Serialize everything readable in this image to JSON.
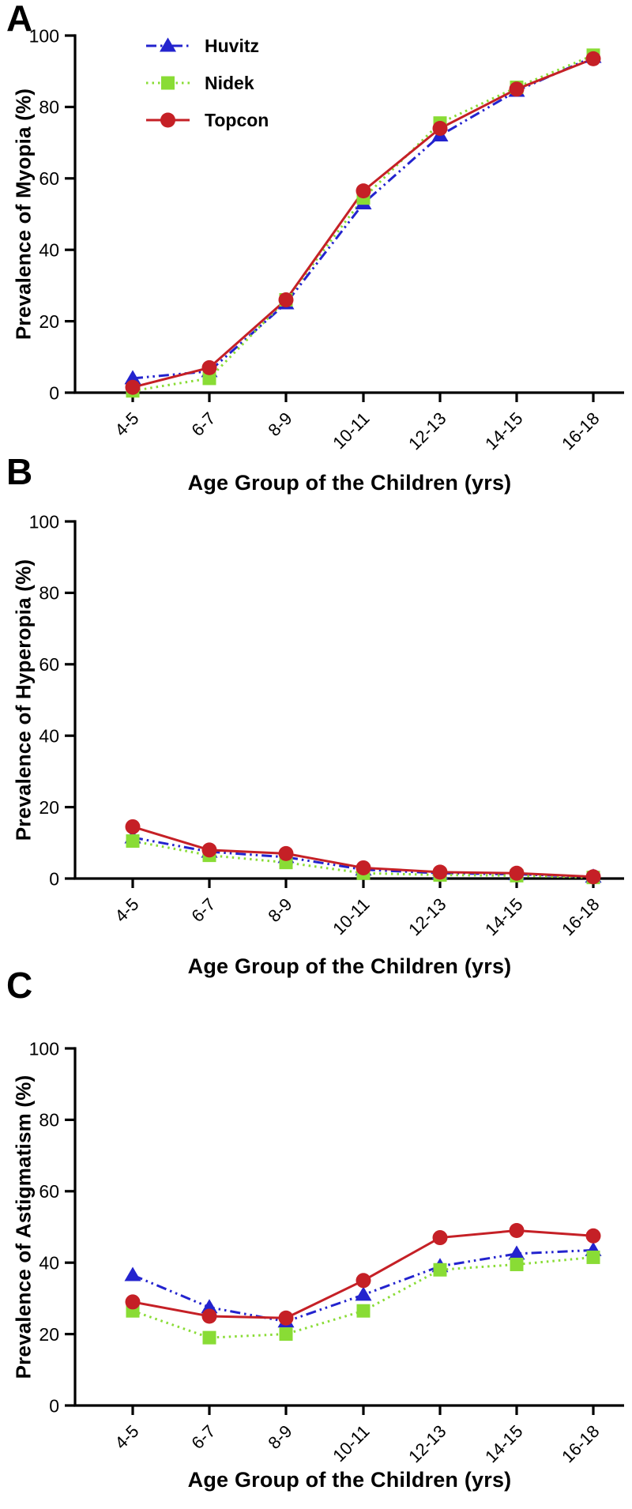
{
  "figure": {
    "y_ticks": [
      0,
      20,
      40,
      60,
      80,
      100
    ],
    "categories": [
      "4-5",
      "6-7",
      "8-9",
      "10-11",
      "12-13",
      "14-15",
      "16-18"
    ],
    "x_axis_label": "Age Group of the Children (yrs)"
  },
  "legend": {
    "items": [
      "Huvitz",
      "Nidek",
      "Topcon"
    ]
  },
  "colors": {
    "huvitz_blue": "#2323CE",
    "nidek_green": "#89DC35",
    "topcon_red": "#C52026",
    "axis_black": "#000000"
  },
  "chart_data": [
    {
      "type": "line",
      "panel": "A",
      "ylabel": "Prevalence of Myopia (%)",
      "xlabel": "Age Group of the Children (yrs)",
      "categories": [
        "4-5",
        "6-7",
        "8-9",
        "10-11",
        "12-13",
        "14-15",
        "16-18"
      ],
      "ylim": [
        0,
        100
      ],
      "legend_position": "upper-left-inside",
      "grid": false,
      "series": [
        {
          "name": "Huvitz",
          "color": "#2323CE",
          "marker": "triangle-icon",
          "line": "dash-dot-dot",
          "values": [
            4,
            6,
            25,
            53,
            72,
            84.5,
            94
          ]
        },
        {
          "name": "Nidek",
          "color": "#89DC35",
          "marker": "square-icon",
          "line": "dotted",
          "values": [
            0.5,
            4,
            26,
            54.5,
            75.5,
            85.5,
            94.5
          ]
        },
        {
          "name": "Topcon",
          "color": "#C52026",
          "marker": "circle-icon",
          "line": "solid",
          "values": [
            1.5,
            7,
            26,
            56.5,
            74,
            85,
            93.5
          ]
        }
      ]
    },
    {
      "type": "line",
      "panel": "B",
      "ylabel": "Prevalence of Hyperopia (%)",
      "xlabel": "Age Group of the Children (yrs)",
      "categories": [
        "4-5",
        "6-7",
        "8-9",
        "10-11",
        "12-13",
        "14-15",
        "16-18"
      ],
      "ylim": [
        0,
        100
      ],
      "grid": false,
      "series": [
        {
          "name": "Huvitz",
          "color": "#2323CE",
          "marker": "triangle-icon",
          "line": "dash-dot-dot",
          "values": [
            11.5,
            7.5,
            6,
            2.5,
            1.5,
            1.2,
            0.5
          ]
        },
        {
          "name": "Nidek",
          "color": "#89DC35",
          "marker": "square-icon",
          "line": "dotted",
          "values": [
            10.5,
            6.5,
            4.5,
            1.5,
            1,
            0.8,
            0.3
          ]
        },
        {
          "name": "Topcon",
          "color": "#C52026",
          "marker": "circle-icon",
          "line": "solid",
          "values": [
            14.5,
            8,
            7,
            3,
            1.8,
            1.5,
            0.5
          ]
        }
      ]
    },
    {
      "type": "line",
      "panel": "C",
      "ylabel": "Prevalence of Astigmatism (%)",
      "xlabel": "Age Group of the Children (yrs)",
      "categories": [
        "4-5",
        "6-7",
        "8-9",
        "10-11",
        "12-13",
        "14-15",
        "16-18"
      ],
      "ylim": [
        0,
        100
      ],
      "grid": false,
      "series": [
        {
          "name": "Huvitz",
          "color": "#2323CE",
          "marker": "triangle-icon",
          "line": "dash-dot-dot",
          "values": [
            36.5,
            27.5,
            23.5,
            31,
            39,
            42.5,
            43.5
          ]
        },
        {
          "name": "Nidek",
          "color": "#89DC35",
          "marker": "square-icon",
          "line": "dotted",
          "values": [
            26.5,
            19,
            20,
            26.5,
            38,
            39.5,
            41.5
          ]
        },
        {
          "name": "Topcon",
          "color": "#C52026",
          "marker": "circle-icon",
          "line": "solid",
          "values": [
            29,
            25,
            24.5,
            35,
            47,
            49,
            47.5
          ]
        }
      ]
    }
  ]
}
